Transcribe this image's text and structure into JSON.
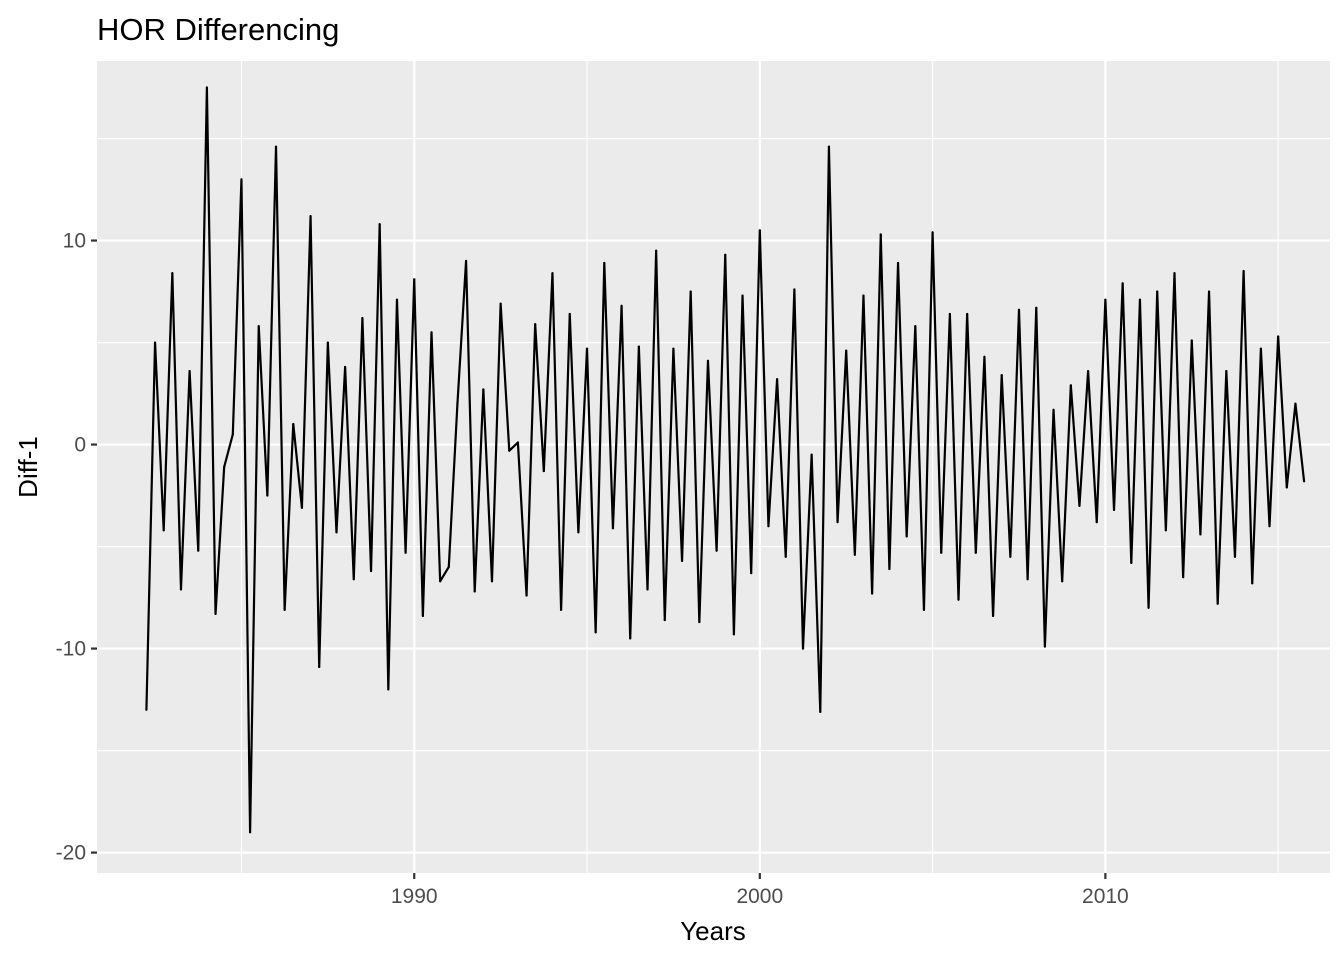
{
  "chart_data": {
    "type": "line",
    "title": "HOR Differencing",
    "xlabel": "Years",
    "ylabel": "Diff-1",
    "xlim": [
      1980.82,
      2016.5
    ],
    "ylim": [
      -21.0,
      18.8
    ],
    "x_ticks": [
      1990,
      2000,
      2010
    ],
    "x_tick_labels": [
      "1990",
      "2000",
      "2010"
    ],
    "y_ticks": [
      -20,
      -10,
      0,
      10
    ],
    "y_tick_labels": [
      "-20",
      "-10",
      "0",
      "10"
    ],
    "grid": true,
    "legend": "none",
    "colors": {
      "panel_background": "#ebebeb",
      "grid": "#ffffff",
      "line": "#000000",
      "tick_label": "#4d4d4d"
    },
    "series": [
      {
        "x": [
          1982.25,
          1982.5,
          1982.75,
          1983.0,
          1983.25,
          1983.5,
          1983.75,
          1984.0,
          1984.25,
          1984.5,
          1984.75,
          1985.0,
          1985.25,
          1985.5,
          1985.75,
          1986.0,
          1986.25,
          1986.5,
          1986.75,
          1987.0,
          1987.25,
          1987.5,
          1987.75,
          1988.0,
          1988.25,
          1988.5,
          1988.75,
          1989.0,
          1989.25,
          1989.5,
          1989.75,
          1990.0,
          1990.25,
          1990.5,
          1990.75,
          1991.0,
          1991.25,
          1991.5,
          1991.75,
          1992.0,
          1992.25,
          1992.5,
          1992.75,
          1993.0,
          1993.25,
          1993.5,
          1993.75,
          1994.0,
          1994.25,
          1994.5,
          1994.75,
          1995.0,
          1995.25,
          1995.5,
          1995.75,
          1996.0,
          1996.25,
          1996.5,
          1996.75,
          1997.0,
          1997.25,
          1997.5,
          1997.75,
          1998.0,
          1998.25,
          1998.5,
          1998.75,
          1999.0,
          1999.25,
          1999.5,
          1999.75,
          2000.0,
          2000.25,
          2000.5,
          2000.75,
          2001.0,
          2001.25,
          2001.5,
          2001.75,
          2002.0,
          2002.25,
          2002.5,
          2002.75,
          2003.0,
          2003.25,
          2003.5,
          2003.75,
          2004.0,
          2004.25,
          2004.5,
          2004.75,
          2005.0,
          2005.25,
          2005.5,
          2005.75,
          2006.0,
          2006.25,
          2006.5,
          2006.75,
          2007.0,
          2007.25,
          2007.5,
          2007.75,
          2008.0,
          2008.25,
          2008.5,
          2008.75,
          2009.0,
          2009.25,
          2009.5,
          2009.75,
          2010.0,
          2010.25,
          2010.5,
          2010.75,
          2011.0,
          2011.25,
          2011.5,
          2011.75,
          2012.0,
          2012.25,
          2012.5,
          2012.75,
          2013.0,
          2013.25,
          2013.5,
          2013.75,
          2014.0,
          2014.25,
          2014.5,
          2014.75,
          2015.0,
          2015.25,
          2015.5,
          2015.75
        ],
        "y": [
          -13.0,
          5.0,
          -4.2,
          8.4,
          -7.1,
          3.6,
          -5.2,
          17.5,
          -8.3,
          -1.1,
          0.5,
          13.0,
          -19.0,
          5.8,
          -2.5,
          14.6,
          -8.1,
          1.0,
          -3.1,
          11.2,
          -10.9,
          5.0,
          -4.3,
          3.8,
          -6.6,
          6.2,
          -6.2,
          10.8,
          -12.0,
          7.1,
          -5.3,
          8.1,
          -8.4,
          5.5,
          -6.7,
          -6.0,
          2.0,
          9.0,
          -7.2,
          2.7,
          -6.7,
          6.9,
          -0.3,
          0.1,
          -7.4,
          5.9,
          -1.3,
          8.4,
          -8.1,
          6.4,
          -4.3,
          4.7,
          -9.2,
          8.9,
          -4.1,
          6.8,
          -9.5,
          4.8,
          -7.1,
          9.5,
          -8.6,
          4.7,
          -5.7,
          7.5,
          -8.7,
          4.1,
          -5.2,
          9.3,
          -9.3,
          7.3,
          -6.3,
          10.5,
          -4.0,
          3.2,
          -5.5,
          7.6,
          -10.0,
          -0.5,
          -13.1,
          14.6,
          -3.8,
          4.6,
          -5.4,
          7.3,
          -7.3,
          10.3,
          -6.1,
          8.9,
          -4.5,
          5.8,
          -8.1,
          10.4,
          -5.3,
          6.4,
          -7.6,
          6.4,
          -5.3,
          4.3,
          -8.4,
          3.4,
          -5.5,
          6.6,
          -6.6,
          6.7,
          -9.9,
          1.7,
          -6.7,
          2.9,
          -3.0,
          3.6,
          -3.8,
          7.1,
          -3.2,
          7.9,
          -5.8,
          7.1,
          -8.0,
          7.5,
          -4.2,
          8.4,
          -6.5,
          5.1,
          -4.4,
          7.5,
          -7.8,
          3.6,
          -5.5,
          8.5,
          -6.8,
          4.7,
          -4.0,
          5.3,
          -2.1,
          2.0,
          -1.8
        ]
      }
    ]
  }
}
